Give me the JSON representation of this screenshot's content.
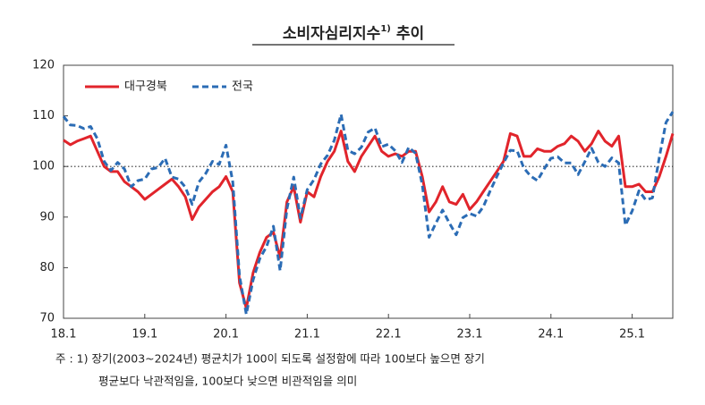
{
  "chart_data": {
    "type": "line",
    "title": "소비자심리지수",
    "title_note": "1)",
    "title_suffix": "추이",
    "categories": [
      "18.1",
      null,
      null,
      null,
      null,
      null,
      null,
      null,
      null,
      null,
      null,
      null,
      "19.1",
      null,
      null,
      null,
      null,
      null,
      null,
      null,
      null,
      null,
      null,
      null,
      "20.1",
      null,
      null,
      null,
      null,
      null,
      null,
      null,
      null,
      null,
      null,
      null,
      "21.1",
      null,
      null,
      null,
      null,
      null,
      null,
      null,
      null,
      null,
      null,
      null,
      "22.1",
      null,
      null,
      null,
      null,
      null,
      null,
      null,
      null,
      null,
      null,
      null,
      "23.1",
      null,
      null,
      null,
      null,
      null,
      null,
      null,
      null,
      null,
      null,
      null,
      "24.1",
      null,
      null,
      null,
      null,
      null,
      null,
      null,
      null,
      null,
      null,
      null,
      "25.1",
      null,
      null,
      null,
      null,
      null,
      null
    ],
    "series": [
      {
        "name": "대구경북",
        "color": "#e1242b",
        "dash": false,
        "values": [
          105.2,
          104.3,
          105,
          105.5,
          106,
          103,
          100,
          99,
          99,
          97,
          96,
          95,
          93.5,
          94.5,
          95.5,
          96.5,
          97.5,
          96,
          94,
          89.5,
          92,
          93.5,
          95,
          96,
          98,
          95,
          77,
          72,
          79,
          83,
          86,
          87,
          82,
          93,
          96,
          89,
          95,
          94,
          98,
          101,
          103,
          107,
          101,
          99,
          102,
          104,
          106,
          103,
          102,
          102.5,
          102,
          103,
          103,
          98,
          91,
          93,
          96,
          93,
          92.5,
          94.5,
          91.5,
          93,
          95,
          97,
          99,
          101,
          106.5,
          106,
          102,
          102,
          103.5,
          103,
          103,
          104,
          104.5,
          106,
          105,
          103,
          104.5,
          107,
          105,
          104,
          106,
          96,
          96,
          96.5,
          95,
          95,
          98,
          102,
          106.5
        ]
      },
      {
        "name": "전국",
        "color": "#2b6cb5",
        "dash": true,
        "values": [
          109.9,
          108.2,
          108.1,
          107.5,
          107.9,
          105.5,
          101.0,
          99.2,
          100.8,
          99.5,
          96.0,
          97.2,
          97.5,
          99.5,
          99.8,
          101.6,
          97.9,
          97.5,
          95.9,
          92.5,
          96.9,
          98.6,
          101.0,
          100.4,
          104.2,
          96.9,
          78.4,
          70.8,
          77.6,
          81.8,
          84.2,
          88.2,
          79.4,
          91.6,
          97.9,
          89.8,
          95.4,
          97.4,
          100.5,
          102.2,
          105.2,
          110.3,
          103.2,
          102.5,
          103.8,
          106.8,
          107.6,
          103.9,
          104.4,
          103.1,
          100.8,
          103.8,
          102.6,
          96.4,
          86.0,
          88.8,
          91.4,
          88.8,
          86.5,
          89.9,
          90.7,
          90.2,
          92.0,
          95.1,
          98.0,
          100.7,
          103.2,
          103.1,
          99.7,
          98.1,
          97.2,
          99.5,
          101.6,
          101.9,
          100.7,
          100.7,
          98.4,
          100.9,
          103.6,
          100.8,
          100.0,
          101.7,
          100.7,
          88.4,
          91.2,
          95.2,
          93.4,
          93.8,
          101.8,
          108.7,
          110.8
        ]
      }
    ],
    "ylim": [
      70,
      120
    ],
    "yticks": [
      70,
      80,
      90,
      100,
      110,
      120
    ],
    "reference_line": 100,
    "legend": "upper left",
    "notes": [
      "주 : 1) 장기(2003~2024년) 평균치가 100이 되도록 설정함에 따라 100보다 높으면 장기",
      "평균보다 낙관적임을, 100보다 낮으면 비관적임을 의미"
    ]
  }
}
